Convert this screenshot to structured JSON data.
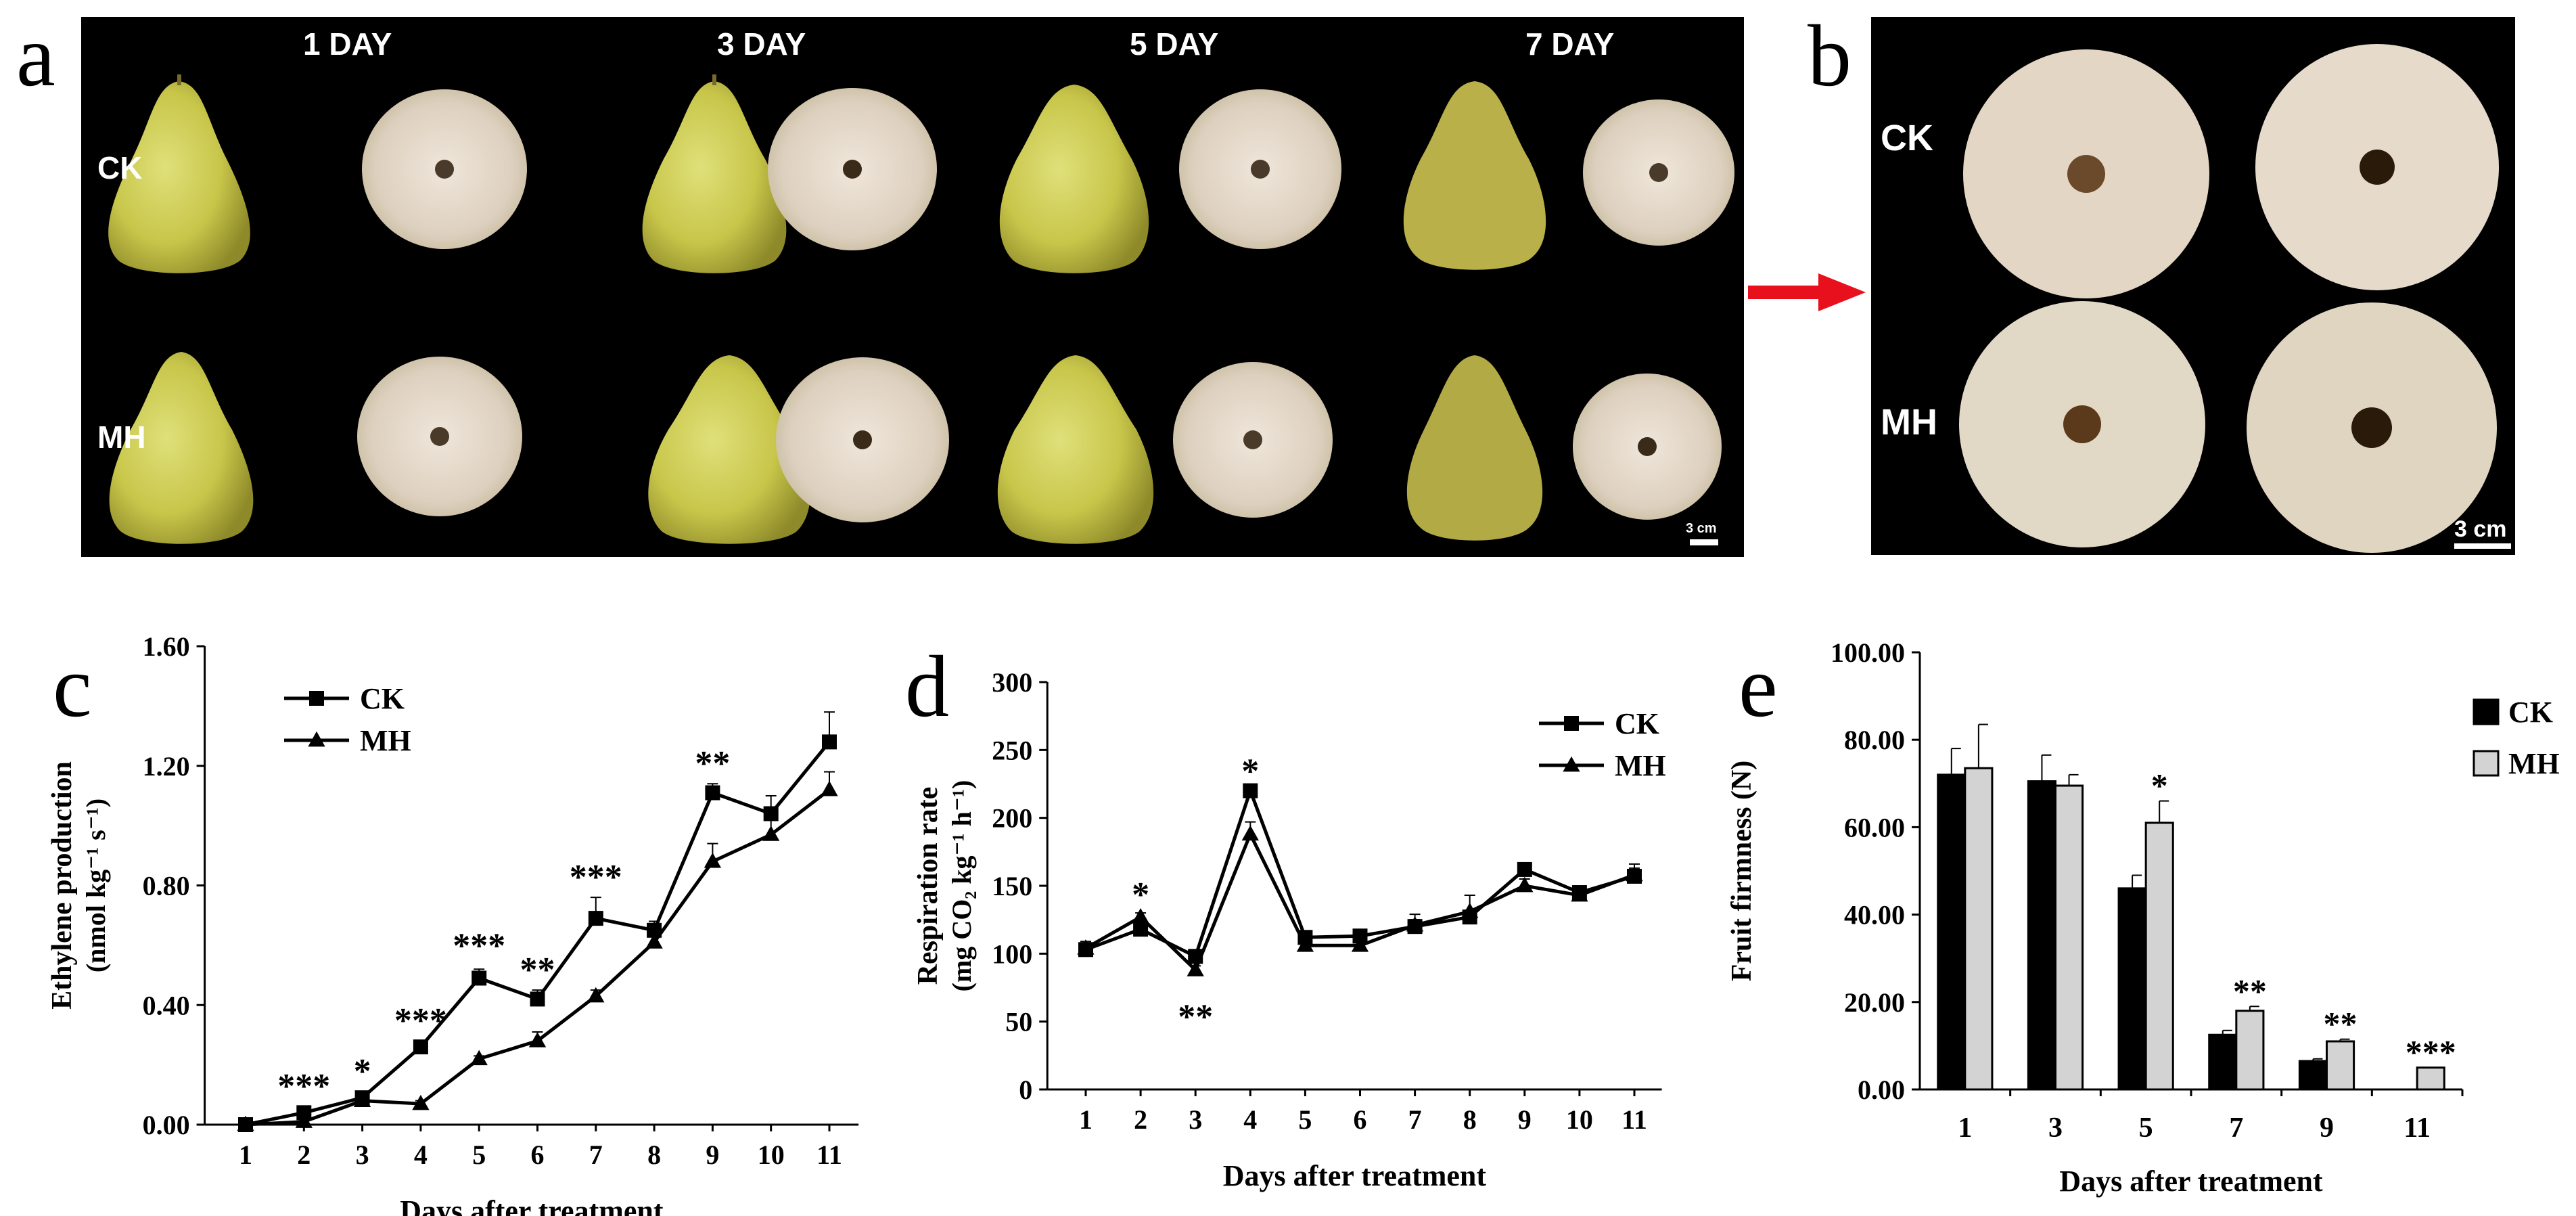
{
  "panel_a": {
    "letter": "a",
    "days": [
      "1 DAY",
      "3 DAY",
      "5 DAY",
      "7 DAY"
    ],
    "rows": [
      "CK",
      "MH"
    ],
    "scale": "3 cm"
  },
  "panel_b": {
    "letter": "b",
    "rows": [
      "CK",
      "MH"
    ],
    "scale": "3 cm"
  },
  "colors": {
    "arrow": "#e8101c",
    "black": "#000000",
    "light_bar": "#d3d3d3"
  },
  "chart_data": [
    {
      "letter": "c",
      "type": "line",
      "xlabel": "Days after treatment",
      "ylabel": "Ethylene production",
      "ylabel_unit": "(nmol kg⁻¹ s⁻¹)",
      "x": [
        1,
        2,
        3,
        4,
        5,
        6,
        7,
        8,
        9,
        10,
        11
      ],
      "ylim": [
        0,
        1.6
      ],
      "yticks": [
        "0.00",
        "0.40",
        "0.80",
        "1.20",
        "1.60"
      ],
      "series": [
        {
          "name": "CK",
          "marker": "square",
          "values": [
            0.0,
            0.04,
            0.09,
            0.26,
            0.49,
            0.42,
            0.69,
            0.65,
            1.11,
            1.04,
            1.28
          ],
          "errors": [
            0,
            0.01,
            0.02,
            0.02,
            0.03,
            0.03,
            0.07,
            0.03,
            0.03,
            0.06,
            0.1
          ]
        },
        {
          "name": "MH",
          "marker": "triangle",
          "values": [
            0.0,
            0.01,
            0.08,
            0.07,
            0.22,
            0.28,
            0.43,
            0.61,
            0.88,
            0.97,
            1.12
          ],
          "errors": [
            0,
            0.01,
            0.01,
            0.01,
            0.01,
            0.03,
            0.02,
            0.05,
            0.06,
            0.08,
            0.06
          ]
        }
      ],
      "annotations": [
        {
          "x": 2,
          "text": "***",
          "y": 0.09
        },
        {
          "x": 3,
          "text": "*",
          "y": 0.14
        },
        {
          "x": 4,
          "text": "***",
          "y": 0.31
        },
        {
          "x": 5,
          "text": "***",
          "y": 0.56
        },
        {
          "x": 6,
          "text": "**",
          "y": 0.48
        },
        {
          "x": 7,
          "text": "***",
          "y": 0.79
        },
        {
          "x": 9,
          "text": "**",
          "y": 1.17
        }
      ]
    },
    {
      "letter": "d",
      "type": "line",
      "xlabel": "Days after treatment",
      "ylabel": "Respiration rate",
      "ylabel_unit": "(mg CO₂ kg⁻¹ h⁻¹)",
      "x": [
        1,
        2,
        3,
        4,
        5,
        6,
        7,
        8,
        9,
        10,
        11
      ],
      "ylim": [
        0,
        300
      ],
      "yticks": [
        "0",
        "50",
        "100",
        "150",
        "200",
        "250",
        "300"
      ],
      "series": [
        {
          "name": "CK",
          "marker": "square",
          "values": [
            103,
            118,
            98,
            220,
            112,
            113,
            120,
            127,
            162,
            145,
            157
          ],
          "errors": [
            5,
            4,
            4,
            4,
            4,
            4,
            5,
            5,
            3,
            4,
            6
          ]
        },
        {
          "name": "MH",
          "marker": "triangle",
          "values": [
            104,
            127,
            88,
            188,
            106,
            106,
            121,
            131,
            150,
            143,
            158
          ],
          "errors": [
            5,
            3,
            3,
            9,
            4,
            4,
            8,
            12,
            5,
            3,
            8
          ]
        }
      ],
      "annotations": [
        {
          "x": 2,
          "text": "*",
          "y": 135,
          "below": false
        },
        {
          "x": 3,
          "text": "**",
          "y": 60,
          "below": true
        },
        {
          "x": 4,
          "text": "*",
          "y": 226,
          "below": false
        }
      ]
    },
    {
      "letter": "e",
      "type": "bar",
      "xlabel": "Days after treatment",
      "ylabel": "Fruit firmness (N)",
      "categories": [
        "1",
        "3",
        "5",
        "7",
        "9",
        "11"
      ],
      "ylim": [
        0,
        100
      ],
      "yticks": [
        "0.00",
        "20.00",
        "40.00",
        "60.00",
        "80.00",
        "100.00"
      ],
      "series": [
        {
          "name": "CK",
          "values": [
            72,
            70.5,
            46,
            12.5,
            6.5,
            0
          ],
          "errors": [
            6,
            6,
            3,
            1,
            0.5,
            0
          ]
        },
        {
          "name": "MH",
          "values": [
            73.5,
            69.5,
            61,
            18,
            11,
            5
          ],
          "errors": [
            10,
            2.5,
            5,
            1,
            0.5,
            0
          ]
        }
      ],
      "annotations": [
        {
          "category": "5",
          "text": "*"
        },
        {
          "category": "7",
          "text": "**"
        },
        {
          "category": "9",
          "text": "**"
        },
        {
          "category": "11",
          "text": "***"
        }
      ]
    }
  ]
}
